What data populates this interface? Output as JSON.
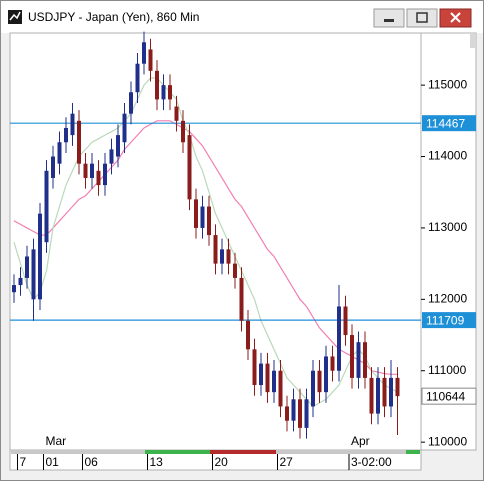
{
  "window": {
    "title": "USDJPY - Japan (Yen), 860 Min"
  },
  "chart_data": {
    "type": "candlestick",
    "categories": [
      null,
      "7",
      null,
      null,
      null,
      "01",
      null,
      null,
      null,
      null,
      null,
      "06",
      null,
      null,
      null,
      null,
      null,
      null,
      null,
      null,
      null,
      "13",
      null,
      null,
      null,
      null,
      null,
      null,
      null,
      null,
      null,
      "20",
      null,
      null,
      null,
      null,
      null,
      null,
      null,
      null,
      null,
      "27",
      null,
      null,
      null,
      null,
      null,
      null,
      null,
      null,
      null,
      null,
      "3-02:00",
      null,
      null,
      null,
      null,
      null,
      null,
      null
    ],
    "month_labels": [
      null,
      null,
      null,
      null,
      null,
      "Mar",
      null,
      null,
      null,
      null,
      null,
      null,
      null,
      null,
      null,
      null,
      null,
      null,
      null,
      null,
      null,
      null,
      null,
      null,
      null,
      null,
      null,
      null,
      null,
      null,
      null,
      null,
      null,
      null,
      null,
      null,
      null,
      null,
      null,
      null,
      null,
      null,
      null,
      null,
      null,
      null,
      null,
      null,
      null,
      null,
      null,
      null,
      "Apr",
      null,
      null,
      null,
      null,
      null,
      null,
      null
    ],
    "open": [
      112100,
      112200,
      112300,
      112000,
      112000,
      112800,
      113700,
      113900,
      114200,
      114300,
      114500,
      113900,
      113700,
      113800,
      113600,
      113900,
      114000,
      114200,
      114600,
      114900,
      115300,
      115500,
      115200,
      114800,
      115000,
      114700,
      114500,
      114300,
      113400,
      113000,
      113300,
      112900,
      112500,
      112700,
      112500,
      112300,
      111700,
      111300,
      110800,
      111100,
      110700,
      111000,
      110500,
      110300,
      110600,
      110200,
      110500,
      111000,
      110700,
      111200,
      111000,
      111900,
      111500,
      110900,
      111400,
      110900,
      110400,
      110900,
      110500,
      110900
    ],
    "high": [
      112350,
      112450,
      112750,
      112850,
      113350,
      113950,
      114150,
      114350,
      114550,
      114750,
      114650,
      114050,
      114050,
      113950,
      114050,
      114250,
      114450,
      114750,
      115050,
      115450,
      115750,
      115650,
      115350,
      115150,
      115150,
      114850,
      114650,
      114450,
      113550,
      113450,
      113450,
      113050,
      112850,
      112850,
      112650,
      112450,
      111850,
      111450,
      111250,
      111250,
      111150,
      111150,
      110650,
      110750,
      110750,
      110750,
      111150,
      111150,
      111350,
      111350,
      112200,
      112050,
      111650,
      111550,
      111550,
      111050,
      111050,
      111050,
      111150,
      111050
    ],
    "low": [
      111950,
      112050,
      112150,
      111700,
      111850,
      112650,
      113550,
      113750,
      114050,
      114150,
      113750,
      113550,
      113550,
      113450,
      113450,
      113750,
      113850,
      114050,
      114450,
      114750,
      115150,
      115050,
      114650,
      114650,
      114650,
      114350,
      114050,
      113250,
      112850,
      112850,
      112750,
      112350,
      112350,
      112350,
      112150,
      111550,
      111150,
      110650,
      110650,
      110550,
      110550,
      110350,
      110150,
      110150,
      110050,
      110050,
      110350,
      110550,
      110550,
      110850,
      110850,
      111350,
      110750,
      110750,
      110750,
      110250,
      110250,
      110350,
      110350,
      110100
    ],
    "close": [
      112200,
      112300,
      112600,
      112700,
      113200,
      113800,
      114000,
      114200,
      114400,
      114600,
      113900,
      113700,
      113900,
      113600,
      113900,
      114100,
      114300,
      114600,
      114900,
      115300,
      115600,
      115200,
      114800,
      115000,
      114800,
      114500,
      114200,
      113400,
      113000,
      113300,
      112900,
      112500,
      112700,
      112500,
      112300,
      111700,
      111300,
      110800,
      111100,
      110700,
      111000,
      110500,
      110300,
      110600,
      110200,
      110600,
      111000,
      110700,
      111200,
      111000,
      111900,
      111500,
      110900,
      111400,
      110900,
      110400,
      110900,
      110500,
      110900,
      110644
    ],
    "up_color": "#1f2f8a",
    "down_color": "#8a1c1c",
    "moving_averages": [
      {
        "color": "#f27fb2",
        "values": [
          113100,
          113050,
          113000,
          112950,
          112900,
          112900,
          113000,
          113100,
          113200,
          113300,
          113400,
          113450,
          113550,
          113650,
          113750,
          113850,
          113950,
          114100,
          114200,
          114300,
          114400,
          114450,
          114500,
          114500,
          114500,
          114450,
          114400,
          114350,
          114250,
          114150,
          114000,
          113850,
          113700,
          113550,
          113400,
          113300,
          113150,
          113000,
          112850,
          112700,
          112600,
          112450,
          112300,
          112150,
          112000,
          111900,
          111750,
          111600,
          111500,
          111400,
          111300,
          111250,
          111200,
          111150,
          111100,
          111000,
          110980,
          110960,
          110950,
          110950
        ]
      },
      {
        "color": "#b9d9b9",
        "values": [
          112800,
          112500,
          112200,
          112000,
          112100,
          112400,
          113000,
          113300,
          113600,
          113800,
          114000,
          114100,
          114200,
          114250,
          114300,
          114350,
          114400,
          114500,
          114600,
          114800,
          115000,
          115100,
          115100,
          115000,
          114900,
          114800,
          114500,
          114300,
          114000,
          113800,
          113500,
          113200,
          113000,
          112800,
          112600,
          112400,
          112200,
          112000,
          111700,
          111500,
          111300,
          111100,
          110900,
          110800,
          110700,
          110600,
          110500,
          110550,
          110600,
          110700,
          110800,
          111000,
          111200,
          111300,
          111200,
          111000,
          110900,
          110800,
          110750,
          110700
        ]
      }
    ],
    "hlines": [
      114467,
      111709
    ],
    "hline_color": "#1e90d8",
    "ylim": [
      109890,
      115730
    ],
    "yticks": [
      110000,
      111000,
      112000,
      113000,
      114000,
      115000
    ]
  }
}
